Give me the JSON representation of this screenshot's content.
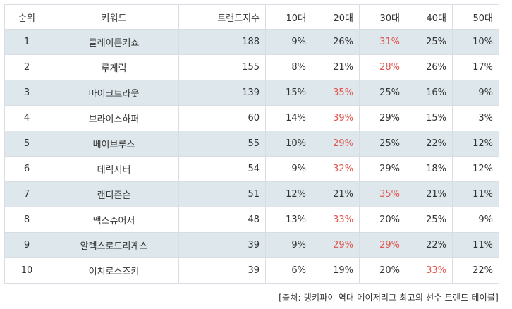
{
  "table": {
    "headers": [
      "순위",
      "키워드",
      "트랜드지수",
      "10대",
      "20대",
      "30대",
      "40대",
      "50대"
    ],
    "rows": [
      {
        "rank": "1",
        "keyword": "클레이튼커쇼",
        "index": "188",
        "a10": "9%",
        "a20": "26%",
        "a30": "31%",
        "a40": "25%",
        "a50": "10%",
        "highlight": "a30"
      },
      {
        "rank": "2",
        "keyword": "루게릭",
        "index": "155",
        "a10": "8%",
        "a20": "21%",
        "a30": "28%",
        "a40": "26%",
        "a50": "17%",
        "highlight": "a30"
      },
      {
        "rank": "3",
        "keyword": "마이크트라웃",
        "index": "139",
        "a10": "15%",
        "a20": "35%",
        "a30": "25%",
        "a40": "16%",
        "a50": "9%",
        "highlight": "a20"
      },
      {
        "rank": "4",
        "keyword": "브라이스하퍼",
        "index": "60",
        "a10": "14%",
        "a20": "39%",
        "a30": "29%",
        "a40": "15%",
        "a50": "3%",
        "highlight": "a20"
      },
      {
        "rank": "5",
        "keyword": "베이브루스",
        "index": "55",
        "a10": "10%",
        "a20": "29%",
        "a30": "25%",
        "a40": "22%",
        "a50": "12%",
        "highlight": "a20"
      },
      {
        "rank": "6",
        "keyword": "데릭지터",
        "index": "54",
        "a10": "9%",
        "a20": "32%",
        "a30": "29%",
        "a40": "18%",
        "a50": "12%",
        "highlight": "a20"
      },
      {
        "rank": "7",
        "keyword": "랜디존슨",
        "index": "51",
        "a10": "12%",
        "a20": "21%",
        "a30": "35%",
        "a40": "21%",
        "a50": "11%",
        "highlight": "a30"
      },
      {
        "rank": "8",
        "keyword": "맥스슈어저",
        "index": "48",
        "a10": "13%",
        "a20": "33%",
        "a30": "20%",
        "a40": "25%",
        "a50": "9%",
        "highlight": "a20"
      },
      {
        "rank": "9",
        "keyword": "알렉스로드리게스",
        "index": "39",
        "a10": "9%",
        "a20": "29%",
        "a30": "29%",
        "a40": "22%",
        "a50": "11%",
        "highlight": "a20,a30"
      },
      {
        "rank": "10",
        "keyword": "이치로스즈키",
        "index": "39",
        "a10": "6%",
        "a20": "19%",
        "a30": "20%",
        "a40": "33%",
        "a50": "22%",
        "highlight": "a40"
      }
    ]
  },
  "source": "[출처: 랭키파이 역대 메이저리그 최고의 선수 트렌드 테이블]",
  "colors": {
    "highlight": "#e0584f",
    "shade": "#dde7ec",
    "border": "#d7dde2"
  }
}
